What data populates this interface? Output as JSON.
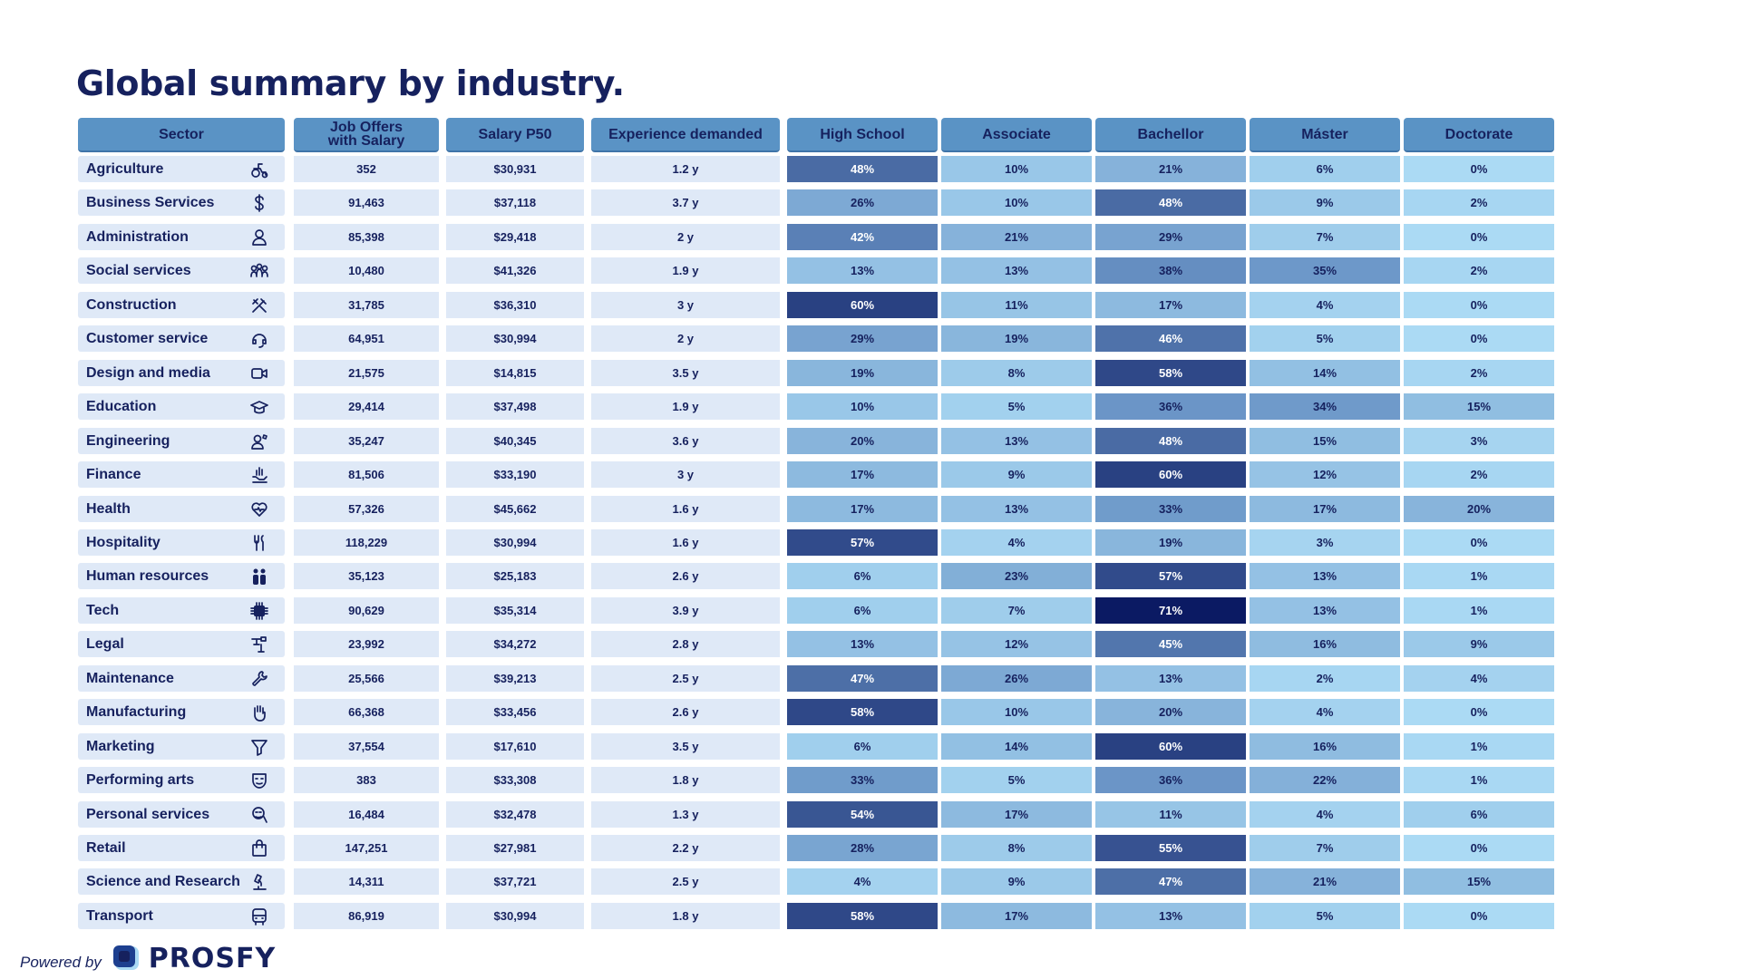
{
  "title": "Global summary by industry.",
  "footer": {
    "powered_by": "Powered by",
    "brand": "PROSFY"
  },
  "colors": {
    "header_bg": "#5a93c5",
    "cell_bg": "#dfe9f7",
    "text": "#16215e",
    "heat_low": "#abdaf4",
    "heat_mid": "#6c97c8",
    "heat_high": "#0b1a63"
  },
  "headers": [
    "Sector",
    "Job Offers\nwith Salary",
    "Salary P50",
    "Experience demanded",
    "High School",
    "Associate",
    "Bachellor",
    "Máster",
    "Doctorate"
  ],
  "chart_data": {
    "type": "table",
    "title": "Global summary by industry.",
    "columns": [
      "Sector",
      "Job Offers with Salary",
      "Salary P50",
      "Experience demanded",
      "High School",
      "Associate",
      "Bachellor",
      "Máster",
      "Doctorate"
    ],
    "rows": [
      {
        "sector": "Agriculture",
        "icon": "tractor-icon",
        "offers": "352",
        "salary": "$30,931",
        "experience": "1.2 y",
        "edu": [
          "48%",
          "10%",
          "21%",
          "6%",
          "0%"
        ]
      },
      {
        "sector": "Business Services",
        "icon": "dollar-icon",
        "offers": "91,463",
        "salary": "$37,118",
        "experience": "3.7 y",
        "edu": [
          "26%",
          "10%",
          "48%",
          "9%",
          "2%"
        ]
      },
      {
        "sector": "Administration",
        "icon": "person-icon",
        "offers": "85,398",
        "salary": "$29,418",
        "experience": "2 y",
        "edu": [
          "42%",
          "21%",
          "29%",
          "7%",
          "0%"
        ]
      },
      {
        "sector": "Social services",
        "icon": "people-group-icon",
        "offers": "10,480",
        "salary": "$41,326",
        "experience": "1.9 y",
        "edu": [
          "13%",
          "13%",
          "38%",
          "35%",
          "2%"
        ]
      },
      {
        "sector": "Construction",
        "icon": "tools-icon",
        "offers": "31,785",
        "salary": "$36,310",
        "experience": "3 y",
        "edu": [
          "60%",
          "11%",
          "17%",
          "4%",
          "0%"
        ]
      },
      {
        "sector": "Customer service",
        "icon": "headset-icon",
        "offers": "64,951",
        "salary": "$30,994",
        "experience": "2 y",
        "edu": [
          "29%",
          "19%",
          "46%",
          "5%",
          "0%"
        ]
      },
      {
        "sector": "Design and media",
        "icon": "video-camera-icon",
        "offers": "21,575",
        "salary": "$14,815",
        "experience": "3.5 y",
        "edu": [
          "19%",
          "8%",
          "58%",
          "14%",
          "2%"
        ]
      },
      {
        "sector": "Education",
        "icon": "graduation-cap-icon",
        "offers": "29,414",
        "salary": "$37,498",
        "experience": "1.9 y",
        "edu": [
          "10%",
          "5%",
          "36%",
          "34%",
          "15%"
        ]
      },
      {
        "sector": "Engineering",
        "icon": "engineer-icon",
        "offers": "35,247",
        "salary": "$40,345",
        "experience": "3.6 y",
        "edu": [
          "20%",
          "13%",
          "48%",
          "15%",
          "3%"
        ]
      },
      {
        "sector": "Finance",
        "icon": "finance-hand-icon",
        "offers": "81,506",
        "salary": "$33,190",
        "experience": "3 y",
        "edu": [
          "17%",
          "9%",
          "60%",
          "12%",
          "2%"
        ]
      },
      {
        "sector": "Health",
        "icon": "heart-pulse-icon",
        "offers": "57,326",
        "salary": "$45,662",
        "experience": "1.6 y",
        "edu": [
          "17%",
          "13%",
          "33%",
          "17%",
          "20%"
        ]
      },
      {
        "sector": "Hospitality",
        "icon": "cutlery-icon",
        "offers": "118,229",
        "salary": "$30,994",
        "experience": "1.6 y",
        "edu": [
          "57%",
          "4%",
          "19%",
          "3%",
          "0%"
        ]
      },
      {
        "sector": "Human resources",
        "icon": "two-people-icon",
        "offers": "35,123",
        "salary": "$25,183",
        "experience": "2.6 y",
        "edu": [
          "6%",
          "23%",
          "57%",
          "13%",
          "1%"
        ]
      },
      {
        "sector": "Tech",
        "icon": "chip-icon",
        "offers": "90,629",
        "salary": "$35,314",
        "experience": "3.9 y",
        "edu": [
          "6%",
          "7%",
          "71%",
          "13%",
          "1%"
        ]
      },
      {
        "sector": "Legal",
        "icon": "gavel-icon",
        "offers": "23,992",
        "salary": "$34,272",
        "experience": "2.8 y",
        "edu": [
          "13%",
          "12%",
          "45%",
          "16%",
          "9%"
        ]
      },
      {
        "sector": "Maintenance",
        "icon": "wrench-icon",
        "offers": "25,566",
        "salary": "$39,213",
        "experience": "2.5 y",
        "edu": [
          "47%",
          "26%",
          "13%",
          "2%",
          "4%"
        ]
      },
      {
        "sector": "Manufacturing",
        "icon": "hand-icon",
        "offers": "66,368",
        "salary": "$33,456",
        "experience": "2.6 y",
        "edu": [
          "58%",
          "10%",
          "20%",
          "4%",
          "0%"
        ]
      },
      {
        "sector": "Marketing",
        "icon": "funnel-icon",
        "offers": "37,554",
        "salary": "$17,610",
        "experience": "3.5 y",
        "edu": [
          "6%",
          "14%",
          "60%",
          "16%",
          "1%"
        ]
      },
      {
        "sector": "Performing arts",
        "icon": "theater-mask-icon",
        "offers": "383",
        "salary": "$33,308",
        "experience": "1.8 y",
        "edu": [
          "33%",
          "5%",
          "36%",
          "22%",
          "1%"
        ]
      },
      {
        "sector": "Personal services",
        "icon": "personal-care-icon",
        "offers": "16,484",
        "salary": "$32,478",
        "experience": "1.3 y",
        "edu": [
          "54%",
          "17%",
          "11%",
          "4%",
          "6%"
        ]
      },
      {
        "sector": "Retail",
        "icon": "shopping-bag-icon",
        "offers": "147,251",
        "salary": "$27,981",
        "experience": "2.2 y",
        "edu": [
          "28%",
          "8%",
          "55%",
          "7%",
          "0%"
        ]
      },
      {
        "sector": "Science and Research",
        "icon": "microscope-icon",
        "offers": "14,311",
        "salary": "$37,721",
        "experience": "2.5 y",
        "edu": [
          "4%",
          "9%",
          "47%",
          "21%",
          "15%"
        ]
      },
      {
        "sector": "Transport",
        "icon": "bus-icon",
        "offers": "86,919",
        "salary": "$30,994",
        "experience": "1.8 y",
        "edu": [
          "58%",
          "17%",
          "13%",
          "5%",
          "0%"
        ]
      }
    ]
  }
}
